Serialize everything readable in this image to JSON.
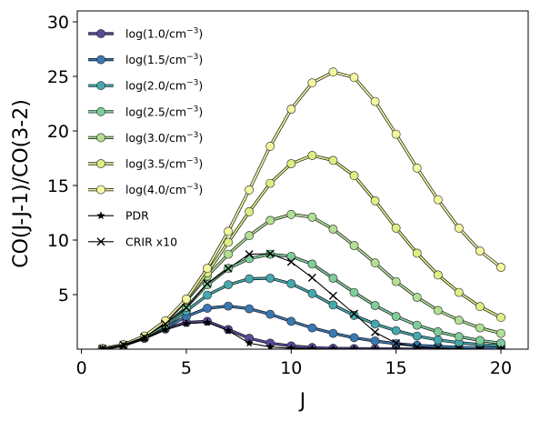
{
  "chart_data": {
    "type": "line",
    "xlabel": "J",
    "ylabel": "CO(J-J-1)/CO(3-2)",
    "xlim": [
      -0.2,
      21.3
    ],
    "ylim": [
      0,
      31
    ],
    "xticks": [
      0,
      5,
      10,
      15,
      20
    ],
    "yticks": [
      5,
      10,
      15,
      20,
      25,
      30
    ],
    "grid": false,
    "legend_position": "upper-left",
    "x": [
      1,
      2,
      3,
      4,
      5,
      6,
      7,
      8,
      9,
      10,
      11,
      12,
      13,
      14,
      15,
      16,
      17,
      18,
      19,
      20
    ],
    "series": [
      {
        "name": "log(1.0/cm",
        "sup": "−3",
        "close": ")",
        "color": "#5a4a9c",
        "marker": "circle",
        "values": [
          0.05,
          0.35,
          1.0,
          1.85,
          2.45,
          2.55,
          1.8,
          1.0,
          0.55,
          0.3,
          0.15,
          0.08,
          0.05,
          0.03,
          0.02,
          0.01,
          0.01,
          0.01,
          0.0,
          0.0
        ]
      },
      {
        "name": "log(1.5/cm",
        "sup": "−3",
        "close": ")",
        "color": "#3a78b4",
        "marker": "circle",
        "values": [
          0.05,
          0.35,
          1.0,
          1.95,
          3.0,
          3.75,
          3.95,
          3.7,
          3.2,
          2.55,
          1.95,
          1.45,
          1.05,
          0.75,
          0.5,
          0.35,
          0.25,
          0.17,
          0.12,
          0.08
        ]
      },
      {
        "name": "log(2.0/cm",
        "sup": "−3",
        "close": ")",
        "color": "#45a8ad",
        "marker": "circle",
        "values": [
          0.05,
          0.35,
          1.05,
          2.1,
          3.5,
          4.95,
          5.9,
          6.45,
          6.5,
          6.0,
          5.1,
          4.05,
          3.1,
          2.3,
          1.7,
          1.2,
          0.85,
          0.6,
          0.42,
          0.3
        ]
      },
      {
        "name": "log(2.5/cm",
        "sup": "−3",
        "close": ")",
        "color": "#7fcc9a",
        "marker": "circle",
        "values": [
          0.05,
          0.35,
          1.1,
          2.2,
          3.85,
          5.9,
          7.4,
          8.3,
          8.7,
          8.5,
          7.8,
          6.5,
          5.2,
          4.0,
          3.0,
          2.2,
          1.6,
          1.15,
          0.8,
          0.55
        ]
      },
      {
        "name": "log(3.0/cm",
        "sup": "−3",
        "close": ")",
        "color": "#b3df93",
        "marker": "circle",
        "values": [
          0.05,
          0.4,
          1.15,
          2.5,
          4.45,
          6.7,
          8.7,
          10.4,
          11.8,
          12.35,
          12.1,
          11.0,
          9.5,
          7.9,
          6.2,
          4.75,
          3.55,
          2.65,
          1.95,
          1.45
        ]
      },
      {
        "name": "log(3.5/cm",
        "sup": "−3",
        "close": ")",
        "color": "#dcef84",
        "marker": "circle",
        "values": [
          0.05,
          0.4,
          1.2,
          2.55,
          4.5,
          7.0,
          9.8,
          12.6,
          15.2,
          17.0,
          17.75,
          17.3,
          15.9,
          13.6,
          11.1,
          8.8,
          6.8,
          5.2,
          3.9,
          2.9
        ]
      },
      {
        "name": "log(4.0/cm",
        "sup": "−3",
        "close": ")",
        "color": "#f2f7a0",
        "marker": "circle",
        "values": [
          0.05,
          0.4,
          1.2,
          2.6,
          4.6,
          7.4,
          10.8,
          14.6,
          18.6,
          22.0,
          24.4,
          25.4,
          24.9,
          22.7,
          19.7,
          16.6,
          13.7,
          11.1,
          9.0,
          7.5
        ]
      },
      {
        "name": "PDR",
        "sup": "",
        "close": "",
        "color": "#000000",
        "marker": "star",
        "values": [
          0.05,
          0.3,
          1.0,
          1.8,
          2.35,
          2.45,
          1.7,
          0.55,
          0.2,
          0.08,
          0.04,
          0.02,
          0.01,
          0.0,
          0.0,
          0.0,
          0.0,
          0.0,
          0.0,
          0.0
        ]
      },
      {
        "name": "CRIR x10",
        "sup": "",
        "close": "",
        "color": "#000000",
        "marker": "x",
        "values": [
          0.05,
          0.4,
          1.1,
          2.3,
          3.8,
          6.0,
          7.4,
          8.7,
          8.75,
          8.0,
          6.55,
          4.9,
          3.25,
          1.55,
          0.55,
          0.2,
          0.08,
          0.03,
          0.01,
          0.0
        ]
      }
    ]
  }
}
